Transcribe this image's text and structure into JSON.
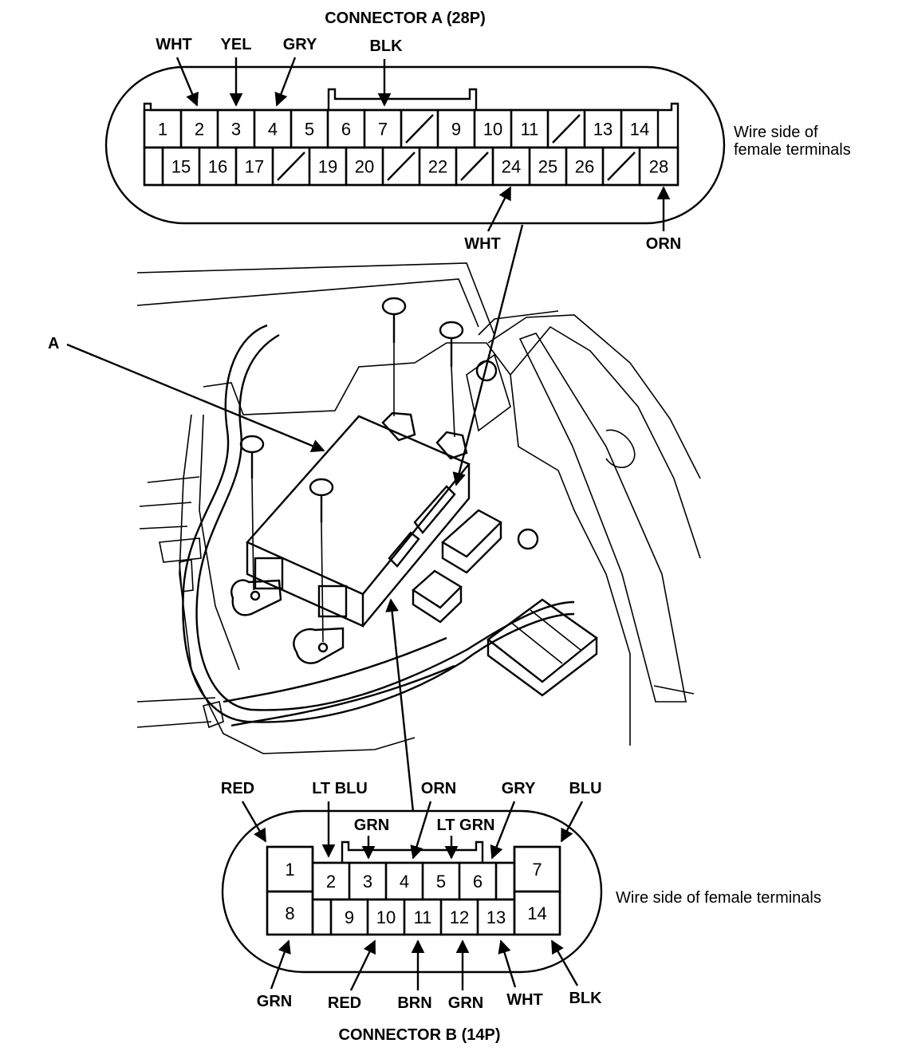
{
  "connector_a": {
    "title": "CONNECTOR A (28P)",
    "side_note_line1": "Wire side of",
    "side_note_line2": "female terminals",
    "top_row": [
      "1",
      "2",
      "3",
      "4",
      "5",
      "6",
      "7",
      "",
      "9",
      "10",
      "11",
      "",
      "13",
      "14"
    ],
    "bottom_row": [
      "",
      "15",
      "16",
      "17",
      "",
      "19",
      "20",
      "",
      "22",
      "",
      "24",
      "25",
      "26",
      "",
      "28"
    ],
    "wires": [
      {
        "terminal": "2",
        "color": "WHT"
      },
      {
        "terminal": "3",
        "color": "YEL"
      },
      {
        "terminal": "4",
        "color": "GRY"
      },
      {
        "terminal": "7",
        "color": "BLK"
      },
      {
        "terminal": "24",
        "color": "WHT"
      },
      {
        "terminal": "28",
        "color": "ORN"
      }
    ]
  },
  "component_label": "A",
  "connector_b": {
    "title": "CONNECTOR B (14P)",
    "side_note": "Wire side of female terminals",
    "top_row": [
      "1",
      "2",
      "3",
      "4",
      "5",
      "6",
      "",
      "7"
    ],
    "bottom_row": [
      "8",
      "",
      "9",
      "10",
      "11",
      "12",
      "13",
      "14"
    ],
    "wires": [
      {
        "terminal": "1",
        "color": "RED"
      },
      {
        "terminal": "2",
        "color": "LT BLU"
      },
      {
        "terminal": "3",
        "color": "GRN"
      },
      {
        "terminal": "4",
        "color": "ORN"
      },
      {
        "terminal": "5",
        "color": "LT GRN"
      },
      {
        "terminal": "6",
        "color": "GRY"
      },
      {
        "terminal": "7",
        "color": "BLU"
      },
      {
        "terminal": "8",
        "color": "GRN"
      },
      {
        "terminal": "9",
        "color": "RED"
      },
      {
        "terminal": "11",
        "color": "BRN"
      },
      {
        "terminal": "12",
        "color": "GRN"
      },
      {
        "terminal": "13",
        "color": "WHT"
      },
      {
        "terminal": "14",
        "color": "BLK"
      }
    ]
  }
}
